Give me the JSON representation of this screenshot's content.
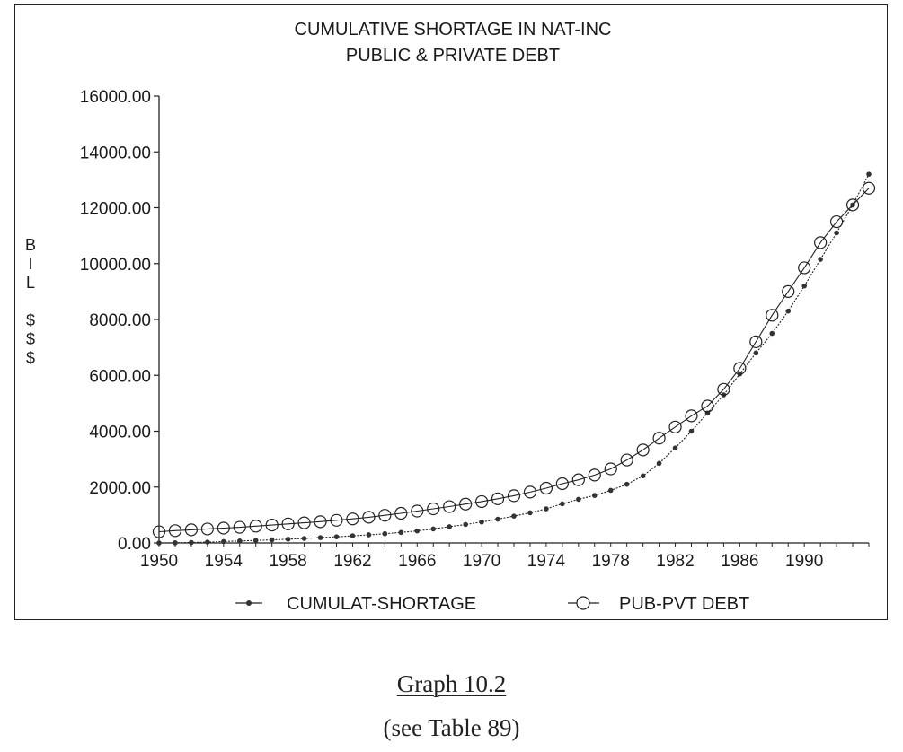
{
  "chart_data": {
    "type": "line",
    "title": "CUMULATIVE SHORTAGE IN NAT-INC",
    "subtitle": "PUBLIC & PRIVATE DEBT",
    "ylabel": [
      "B",
      "I",
      "L",
      "",
      "$",
      "$",
      "$"
    ],
    "xlabel": "",
    "ylim": [
      0,
      16000
    ],
    "y_ticks": [
      "0.00",
      "2000.00",
      "4000.00",
      "6000.00",
      "8000.00",
      "10000.00",
      "12000.00",
      "14000.00",
      "16000.00"
    ],
    "xlim": [
      1950,
      1994
    ],
    "x_ticks": [
      "1950",
      "1954",
      "1958",
      "1962",
      "1966",
      "1970",
      "1974",
      "1978",
      "1982",
      "1986",
      "1990"
    ],
    "grid": false,
    "legend_position": "bottom",
    "x": [
      1950,
      1951,
      1952,
      1953,
      1954,
      1955,
      1956,
      1957,
      1958,
      1959,
      1960,
      1961,
      1962,
      1963,
      1964,
      1965,
      1966,
      1967,
      1968,
      1969,
      1970,
      1971,
      1972,
      1973,
      1974,
      1975,
      1976,
      1977,
      1978,
      1979,
      1980,
      1981,
      1982,
      1983,
      1984,
      1985,
      1986,
      1987,
      1988,
      1989,
      1990,
      1991,
      1992,
      1993,
      1994
    ],
    "series": [
      {
        "name": "CUMULAT-SHORTAGE",
        "marker": "filled-dot",
        "values": [
          0,
          5,
          15,
          30,
          50,
          70,
          90,
          110,
          135,
          160,
          190,
          220,
          255,
          290,
          330,
          375,
          430,
          500,
          580,
          660,
          750,
          850,
          960,
          1080,
          1220,
          1400,
          1560,
          1700,
          1880,
          2100,
          2400,
          2850,
          3400,
          4000,
          4650,
          5300,
          6050,
          6800,
          7500,
          8300,
          9200,
          10150,
          11100,
          12100,
          13200
        ]
      },
      {
        "name": "PUB-PVT DEBT",
        "marker": "open-circle",
        "values": [
          400,
          440,
          470,
          500,
          530,
          560,
          600,
          640,
          680,
          720,
          760,
          810,
          860,
          920,
          990,
          1060,
          1140,
          1220,
          1300,
          1390,
          1480,
          1580,
          1690,
          1820,
          1960,
          2120,
          2260,
          2430,
          2650,
          2970,
          3330,
          3750,
          4150,
          4550,
          4900,
          5500,
          6250,
          7200,
          8150,
          9000,
          9850,
          10750,
          11500,
          12100,
          12700
        ]
      }
    ]
  },
  "captions": {
    "graph": "Graph 10.2",
    "table_ref": "(see Table 89)"
  },
  "colors": {
    "line": "#222222",
    "background": "#ffffff"
  }
}
